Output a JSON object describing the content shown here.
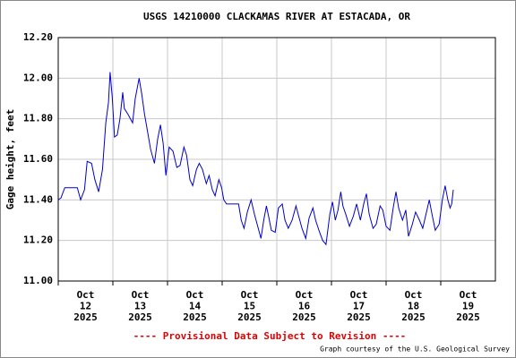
{
  "chart_data": {
    "type": "line",
    "title": "USGS 14210000 CLACKAMAS RIVER AT ESTACADA, OR",
    "ylabel": "Gage height, feet",
    "footer": "---- Provisional Data Subject to Revision ----",
    "credit": "Graph courtesy of the U.S. Geological Survey",
    "color": "#0000cc",
    "grid": true,
    "xlim": [
      12,
      20
    ],
    "xticks": [
      {
        "value": 12,
        "label": [
          "Oct",
          "12",
          "2025"
        ]
      },
      {
        "value": 13,
        "label": [
          "Oct",
          "13",
          "2025"
        ]
      },
      {
        "value": 14,
        "label": [
          "Oct",
          "14",
          "2025"
        ]
      },
      {
        "value": 15,
        "label": [
          "Oct",
          "15",
          "2025"
        ]
      },
      {
        "value": 16,
        "label": [
          "Oct",
          "16",
          "2025"
        ]
      },
      {
        "value": 17,
        "label": [
          "Oct",
          "17",
          "2025"
        ]
      },
      {
        "value": 18,
        "label": [
          "Oct",
          "18",
          "2025"
        ]
      },
      {
        "value": 19,
        "label": [
          "Oct",
          "19",
          "2025"
        ]
      }
    ],
    "ylim": [
      11.0,
      12.2
    ],
    "yticks": [
      {
        "value": 11.0,
        "label": "11.00"
      },
      {
        "value": 11.2,
        "label": "11.20"
      },
      {
        "value": 11.4,
        "label": "11.40"
      },
      {
        "value": 11.6,
        "label": "11.60"
      },
      {
        "value": 11.8,
        "label": "11.80"
      },
      {
        "value": 12.0,
        "label": "12.00"
      },
      {
        "value": 12.2,
        "label": "12.20"
      }
    ],
    "x": [
      12.0,
      12.05,
      12.12,
      12.21,
      12.35,
      12.41,
      12.48,
      12.53,
      12.61,
      12.67,
      12.74,
      12.81,
      12.87,
      12.92,
      12.95,
      12.99,
      13.03,
      13.08,
      13.13,
      13.18,
      13.21,
      13.28,
      13.36,
      13.41,
      13.48,
      13.53,
      13.58,
      13.62,
      13.69,
      13.76,
      13.82,
      13.87,
      13.92,
      13.97,
      14.03,
      14.1,
      14.17,
      14.23,
      14.3,
      14.35,
      14.41,
      14.46,
      14.53,
      14.58,
      14.64,
      14.71,
      14.76,
      14.82,
      14.87,
      14.94,
      14.99,
      15.03,
      15.08,
      15.2,
      15.3,
      15.35,
      15.4,
      15.46,
      15.53,
      15.59,
      15.66,
      15.71,
      15.76,
      15.81,
      15.85,
      15.9,
      15.97,
      16.03,
      16.1,
      16.15,
      16.21,
      16.28,
      16.35,
      16.4,
      16.46,
      16.53,
      16.59,
      16.66,
      16.71,
      16.77,
      16.84,
      16.9,
      16.97,
      17.02,
      17.07,
      17.12,
      17.17,
      17.21,
      17.26,
      17.33,
      17.4,
      17.46,
      17.53,
      17.59,
      17.64,
      17.69,
      17.76,
      17.82,
      17.89,
      17.94,
      18.0,
      18.07,
      18.13,
      18.18,
      18.23,
      18.3,
      18.36,
      18.41,
      18.48,
      18.54,
      18.61,
      18.67,
      18.74,
      18.79,
      18.84,
      18.9,
      18.97,
      19.03,
      19.08,
      19.13,
      19.17,
      19.2,
      19.23
    ],
    "values": [
      11.4,
      11.41,
      11.46,
      11.46,
      11.46,
      11.4,
      11.45,
      11.59,
      11.58,
      11.5,
      11.44,
      11.55,
      11.78,
      11.88,
      12.03,
      11.9,
      11.71,
      11.72,
      11.8,
      11.93,
      11.85,
      11.82,
      11.78,
      11.9,
      12.0,
      11.92,
      11.82,
      11.76,
      11.65,
      11.58,
      11.7,
      11.77,
      11.68,
      11.52,
      11.66,
      11.64,
      11.56,
      11.57,
      11.66,
      11.62,
      11.5,
      11.47,
      11.55,
      11.58,
      11.55,
      11.48,
      11.52,
      11.45,
      11.42,
      11.5,
      11.46,
      11.4,
      11.38,
      11.38,
      11.38,
      11.3,
      11.26,
      11.34,
      11.4,
      11.33,
      11.26,
      11.21,
      11.3,
      11.37,
      11.32,
      11.25,
      11.24,
      11.36,
      11.38,
      11.3,
      11.26,
      11.3,
      11.37,
      11.32,
      11.26,
      11.21,
      11.31,
      11.36,
      11.3,
      11.25,
      11.2,
      11.18,
      11.33,
      11.39,
      11.3,
      11.35,
      11.44,
      11.37,
      11.33,
      11.27,
      11.32,
      11.38,
      11.3,
      11.38,
      11.43,
      11.33,
      11.26,
      11.28,
      11.37,
      11.35,
      11.27,
      11.25,
      11.36,
      11.44,
      11.36,
      11.3,
      11.35,
      11.22,
      11.28,
      11.34,
      11.3,
      11.26,
      11.34,
      11.4,
      11.33,
      11.25,
      11.28,
      11.4,
      11.47,
      11.4,
      11.36,
      11.38,
      11.45
    ]
  }
}
